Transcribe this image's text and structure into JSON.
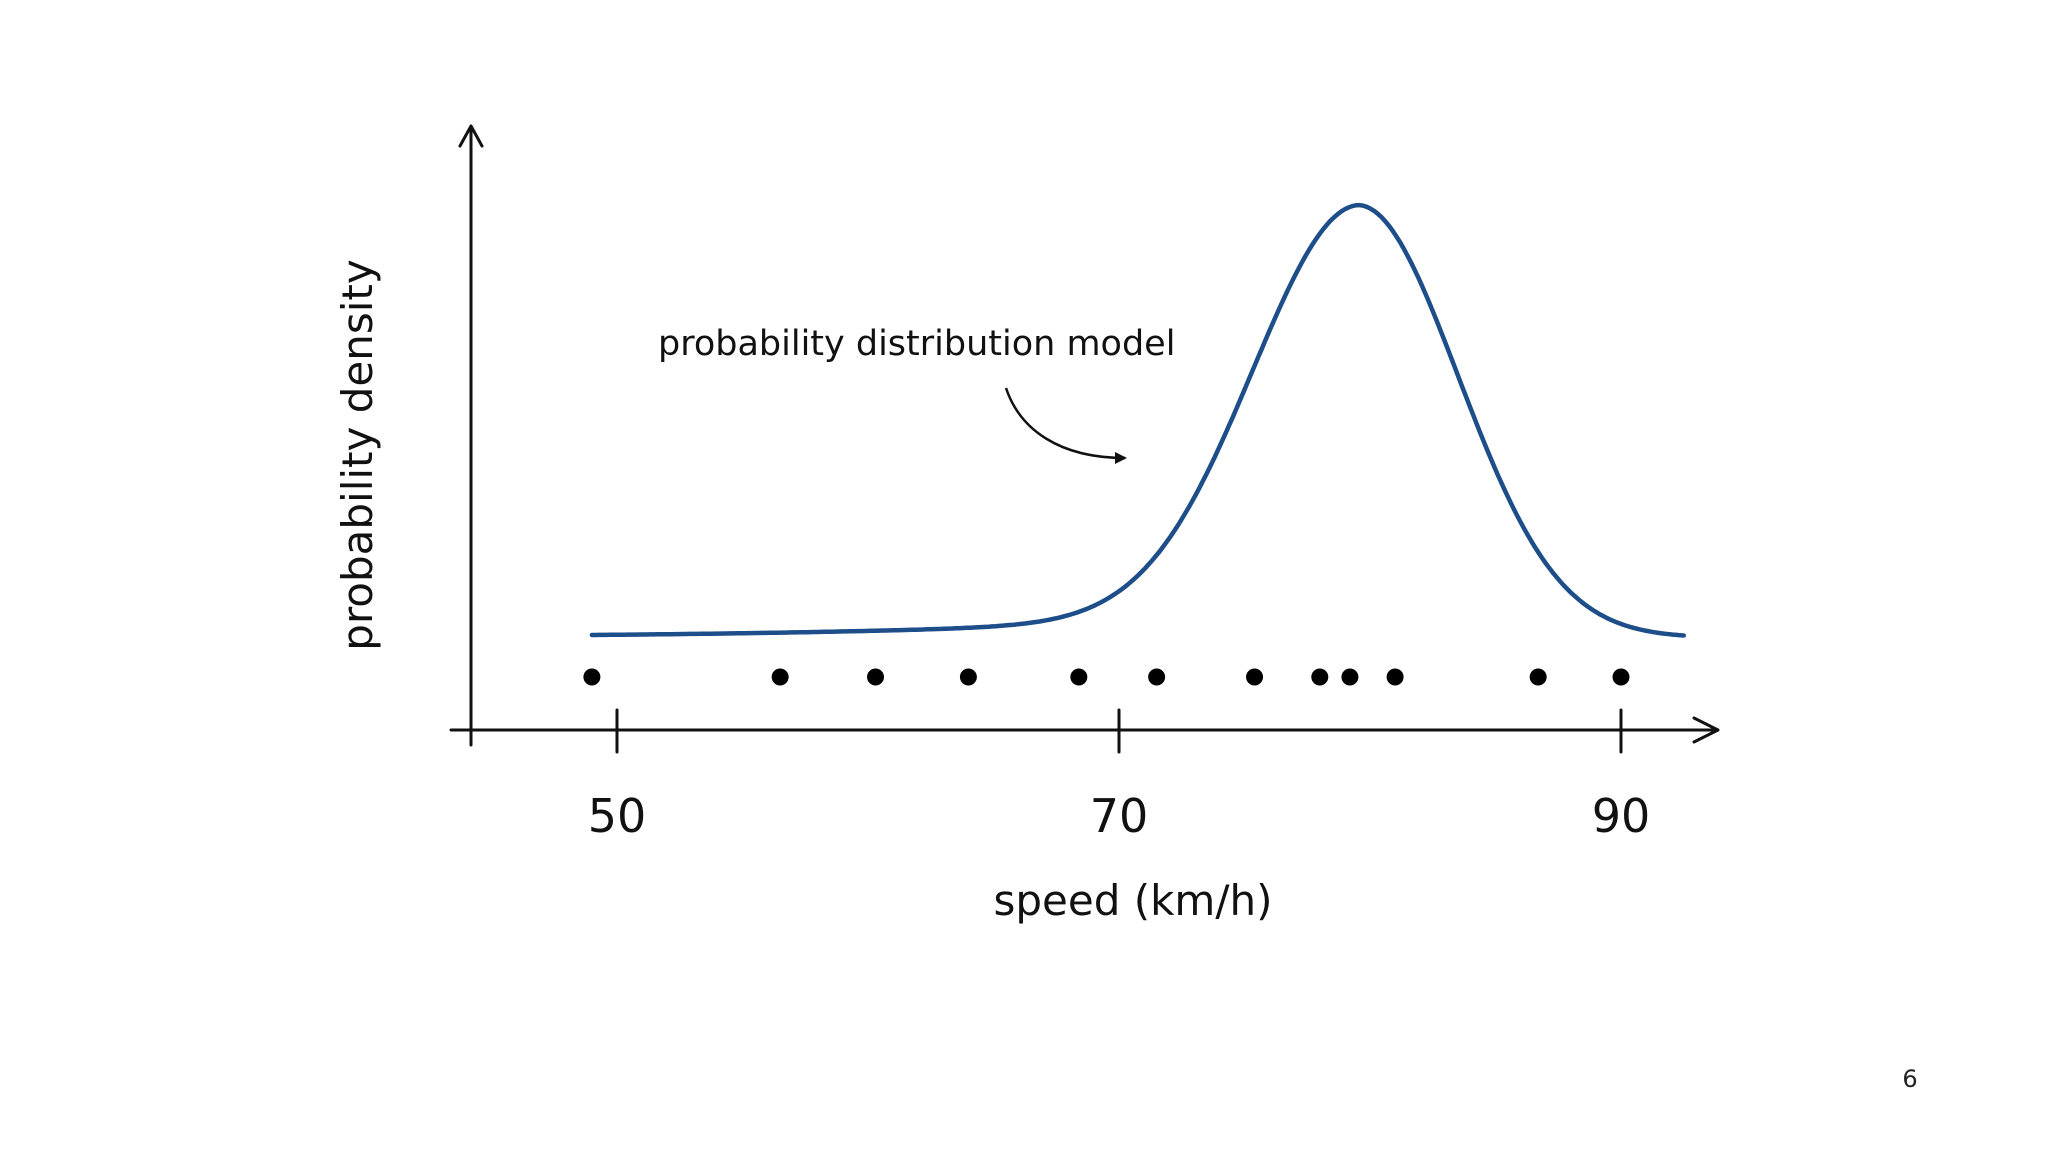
{
  "chart_data": {
    "type": "line",
    "title": "",
    "xlabel": "speed (km/h)",
    "ylabel": "probability density",
    "xlim": [
      44,
      98
    ],
    "x_ticks": [
      50,
      70,
      90
    ],
    "grid": false,
    "series": [
      {
        "kind": "curve",
        "color": "#1d4e89",
        "shape": "right-peaked unimodal density",
        "peak_x": 79.5,
        "x_range": [
          49,
          92.5
        ]
      },
      {
        "kind": "points",
        "color": "#000000",
        "x": [
          49,
          56.5,
          60.3,
          64,
          68.4,
          71.5,
          75.4,
          78,
          79.2,
          81,
          86.7,
          90
        ]
      }
    ],
    "annotations": [
      {
        "text": "probability distribution model",
        "points_to": "curve"
      }
    ]
  },
  "page": {
    "number": "6"
  }
}
